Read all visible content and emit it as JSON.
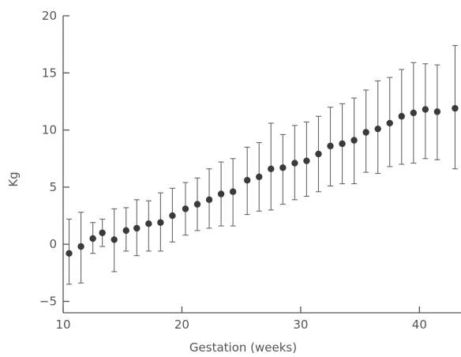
{
  "chart_data": {
    "type": "scatter",
    "title": "",
    "xlabel": "Gestation (weeks)",
    "ylabel": "Kg",
    "xlim": [
      10,
      43.5
    ],
    "ylim": [
      -6,
      20
    ],
    "xticks": [
      10,
      20,
      30,
      40
    ],
    "yticks": [
      -5,
      0,
      5,
      10,
      15,
      20
    ],
    "xtick_labels": [
      "10",
      "20",
      "30",
      "40"
    ],
    "ytick_labels": [
      "−5",
      "0",
      "5",
      "10",
      "15",
      "20"
    ],
    "grid": false,
    "legend": "none",
    "marker_color": "#3a3a3a",
    "series": [
      {
        "x": [
          10.5,
          11.5,
          12.5,
          13.3,
          14.3,
          15.3,
          16.2,
          17.2,
          18.2,
          19.2,
          20.3,
          21.3,
          22.3,
          23.3,
          24.3,
          25.5,
          26.5,
          27.5,
          28.5,
          29.5,
          30.5,
          31.5,
          32.5,
          33.5,
          34.5,
          35.5,
          36.5,
          37.5,
          38.5,
          39.5,
          40.5,
          41.5,
          43.0
        ],
        "y": [
          -0.8,
          -0.2,
          0.5,
          1.0,
          0.4,
          1.2,
          1.4,
          1.8,
          1.9,
          2.5,
          3.1,
          3.5,
          3.9,
          4.4,
          4.6,
          5.6,
          5.9,
          6.6,
          6.7,
          7.1,
          7.3,
          7.9,
          8.6,
          8.8,
          9.1,
          9.8,
          10.1,
          10.6,
          11.2,
          11.5,
          11.8,
          11.6,
          11.9
        ],
        "err_low": [
          -3.5,
          -3.4,
          -0.8,
          -0.2,
          -2.4,
          -0.6,
          -1.0,
          -0.6,
          -0.6,
          0.2,
          0.8,
          1.2,
          1.4,
          1.6,
          1.6,
          2.6,
          2.9,
          3.0,
          3.5,
          3.9,
          4.2,
          4.6,
          5.1,
          5.3,
          5.3,
          6.3,
          6.2,
          6.8,
          7.0,
          7.1,
          7.5,
          7.4,
          6.6
        ],
        "err_high": [
          2.2,
          2.8,
          1.9,
          2.2,
          3.1,
          3.2,
          3.9,
          3.8,
          4.5,
          4.9,
          5.4,
          5.8,
          6.6,
          7.2,
          7.5,
          8.5,
          8.9,
          10.6,
          9.6,
          10.4,
          10.7,
          11.2,
          12.0,
          12.3,
          12.8,
          13.5,
          14.3,
          14.6,
          15.3,
          15.9,
          15.8,
          15.7,
          17.4
        ]
      }
    ]
  }
}
